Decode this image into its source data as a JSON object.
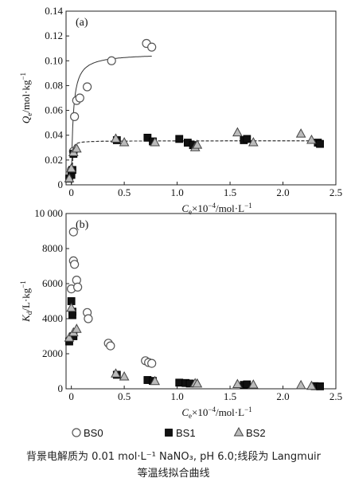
{
  "chart_data": [
    {
      "type": "scatter",
      "panel_label": "(a)",
      "ylabel_main": "Q",
      "ylabel_sub": "e",
      "ylabel_rest": "/mol·kg",
      "ylabel_sup": "−1",
      "xlabel_main": "C",
      "xlabel_sub": "e",
      "xlabel_rest": "×10",
      "xlabel_sup": "−4",
      "xlabel_tail": "/mol·L",
      "xlabel_sup2": "−1",
      "xlim": [
        -0.05,
        2.5
      ],
      "ylim": [
        0,
        0.14
      ],
      "xticks": [
        "0",
        "0.5",
        "1.0",
        "1.5",
        "2.0",
        "2.5"
      ],
      "yticks": [
        "0",
        "0.02",
        "0.04",
        "0.06",
        "0.08",
        "0.10",
        "0.12",
        "0.14"
      ],
      "series": [
        {
          "name": "BS0",
          "marker": "circle-open",
          "x": [
            0.0,
            0.02,
            0.03,
            0.05,
            0.08,
            0.15,
            0.38,
            0.71,
            0.76
          ],
          "y": [
            0.012,
            0.027,
            0.055,
            0.068,
            0.07,
            0.079,
            0.1,
            0.114,
            0.111
          ]
        },
        {
          "name": "BS1",
          "marker": "square-filled",
          "x": [
            -0.02,
            0.0,
            0.01,
            0.02,
            0.43,
            0.72,
            0.77,
            1.02,
            1.1,
            1.15,
            1.63,
            1.66,
            2.33,
            2.35
          ],
          "y": [
            0.005,
            0.008,
            0.012,
            0.025,
            0.036,
            0.038,
            0.035,
            0.037,
            0.034,
            0.032,
            0.036,
            0.037,
            0.034,
            0.033
          ]
        },
        {
          "name": "BS2",
          "marker": "triangle",
          "x": [
            -0.02,
            0.0,
            0.02,
            0.05,
            0.42,
            0.5,
            0.79,
            1.17,
            1.19,
            1.57,
            1.72,
            2.17,
            2.27
          ],
          "y": [
            0.005,
            0.013,
            0.026,
            0.029,
            0.037,
            0.034,
            0.034,
            0.03,
            0.032,
            0.042,
            0.034,
            0.041,
            0.036
          ]
        }
      ],
      "fit_curves": [
        {
          "for": "BS0",
          "style": "solid",
          "qmax": 0.106,
          "kl": 60
        },
        {
          "for": "BS1",
          "style": "dashed",
          "qmax": 0.0355,
          "kl": 300
        },
        {
          "for": "BS2",
          "style": "dashed",
          "qmax": 0.0355,
          "kl": 300
        }
      ]
    },
    {
      "type": "scatter",
      "panel_label": "(b)",
      "ylabel_main": "K",
      "ylabel_sub": "d",
      "ylabel_rest": "/L·kg",
      "ylabel_sup": "−1",
      "xlabel_main": "C",
      "xlabel_sub": "e",
      "xlabel_rest": "×10",
      "xlabel_sup": "−4",
      "xlabel_tail": "/mol·L",
      "xlabel_sup2": "−1",
      "xlim": [
        -0.05,
        2.5
      ],
      "ylim": [
        0,
        10000
      ],
      "xticks": [
        "0",
        "0.5",
        "1.0",
        "1.5",
        "2.0",
        "2.5"
      ],
      "yticks": [
        "0",
        "2000",
        "4000",
        "6000",
        "8000",
        "10 000"
      ],
      "series": [
        {
          "name": "BS0",
          "marker": "circle-open",
          "x": [
            0.0,
            0.02,
            0.02,
            0.03,
            0.05,
            0.06,
            0.15,
            0.16,
            0.35,
            0.37,
            0.7,
            0.73,
            0.76
          ],
          "y": [
            5700,
            8950,
            7300,
            7100,
            6200,
            5800,
            4350,
            4000,
            2600,
            2450,
            1600,
            1500,
            1450
          ]
        },
        {
          "name": "BS1",
          "marker": "square-filled",
          "x": [
            -0.02,
            0.0,
            0.01,
            0.01,
            0.02,
            0.43,
            0.72,
            0.77,
            1.02,
            1.08,
            1.12,
            1.63,
            1.66,
            2.3,
            2.35
          ],
          "y": [
            2700,
            5000,
            4400,
            4200,
            3000,
            800,
            500,
            450,
            350,
            330,
            300,
            220,
            250,
            150,
            140
          ]
        },
        {
          "name": "BS2",
          "marker": "triangle",
          "x": [
            -0.02,
            0.0,
            0.02,
            0.05,
            0.42,
            0.5,
            0.79,
            1.17,
            1.19,
            1.57,
            1.72,
            2.17,
            2.27
          ],
          "y": [
            2900,
            4600,
            3200,
            3400,
            850,
            680,
            420,
            300,
            280,
            250,
            220,
            190,
            150
          ]
        }
      ]
    }
  ],
  "legend": {
    "items": [
      {
        "label": "BS0",
        "marker": "circle-open"
      },
      {
        "label": "BS1",
        "marker": "square-filled"
      },
      {
        "label": "BS2",
        "marker": "triangle"
      }
    ]
  },
  "caption_line1": "背景电解质为 0.01 mol·L⁻¹ NaNO₃, pH 6.0;线段为 Langmuir",
  "caption_line2": "等温线拟合曲线"
}
